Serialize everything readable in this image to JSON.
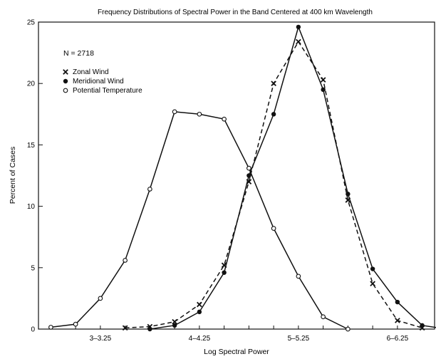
{
  "chart_data": {
    "type": "line",
    "title": "Frequency Distributions of Spectral Power in the Band Centered at 400 km Wavelength",
    "xlabel": "Log Spectral Power",
    "ylabel": "Percent of Cases",
    "annotation": "N = 2718",
    "ylim": [
      0,
      25
    ],
    "yticks": [
      0,
      5,
      10,
      15,
      20,
      25
    ],
    "xlim": [
      2.5,
      6.5
    ],
    "x_categories": [
      {
        "label": "3–3.25",
        "x": 3.125
      },
      {
        "label": "4–4.25",
        "x": 4.125
      },
      {
        "label": "5–5.25",
        "x": 5.125
      },
      {
        "label": "6–6.25",
        "x": 6.125
      }
    ],
    "grid": false,
    "legend_position": "top-left",
    "series": [
      {
        "name": "Zonal Wind",
        "marker": "x",
        "line": "dashed",
        "points": [
          [
            3.375,
            0.1
          ],
          [
            3.625,
            0.2
          ],
          [
            3.875,
            0.6
          ],
          [
            4.125,
            2.0
          ],
          [
            4.375,
            5.2
          ],
          [
            4.625,
            12.0
          ],
          [
            4.875,
            20.0
          ],
          [
            5.125,
            23.4
          ],
          [
            5.375,
            20.3
          ],
          [
            5.625,
            10.5
          ],
          [
            5.875,
            3.7
          ],
          [
            6.125,
            0.7
          ],
          [
            6.375,
            0.1
          ]
        ]
      },
      {
        "name": "Meridional Wind",
        "marker": "dot",
        "line": "solid",
        "points": [
          [
            3.625,
            0.0
          ],
          [
            3.875,
            0.3
          ],
          [
            4.125,
            1.4
          ],
          [
            4.375,
            4.6
          ],
          [
            4.625,
            12.5
          ],
          [
            4.875,
            17.5
          ],
          [
            5.125,
            24.6
          ],
          [
            5.375,
            19.5
          ],
          [
            5.625,
            11.0
          ],
          [
            5.875,
            4.9
          ],
          [
            6.125,
            2.2
          ],
          [
            6.375,
            0.3
          ],
          [
            6.625,
            0.0
          ]
        ]
      },
      {
        "name": "Potential Temperature",
        "marker": "circle",
        "line": "solid",
        "points": [
          [
            2.625,
            0.15
          ],
          [
            2.875,
            0.4
          ],
          [
            3.125,
            2.5
          ],
          [
            3.375,
            5.6
          ],
          [
            3.625,
            11.4
          ],
          [
            3.875,
            17.7
          ],
          [
            4.125,
            17.5
          ],
          [
            4.375,
            17.1
          ],
          [
            4.625,
            13.1
          ],
          [
            4.875,
            8.2
          ],
          [
            5.125,
            4.3
          ],
          [
            5.375,
            1.0
          ],
          [
            5.625,
            0.0
          ]
        ]
      }
    ]
  }
}
